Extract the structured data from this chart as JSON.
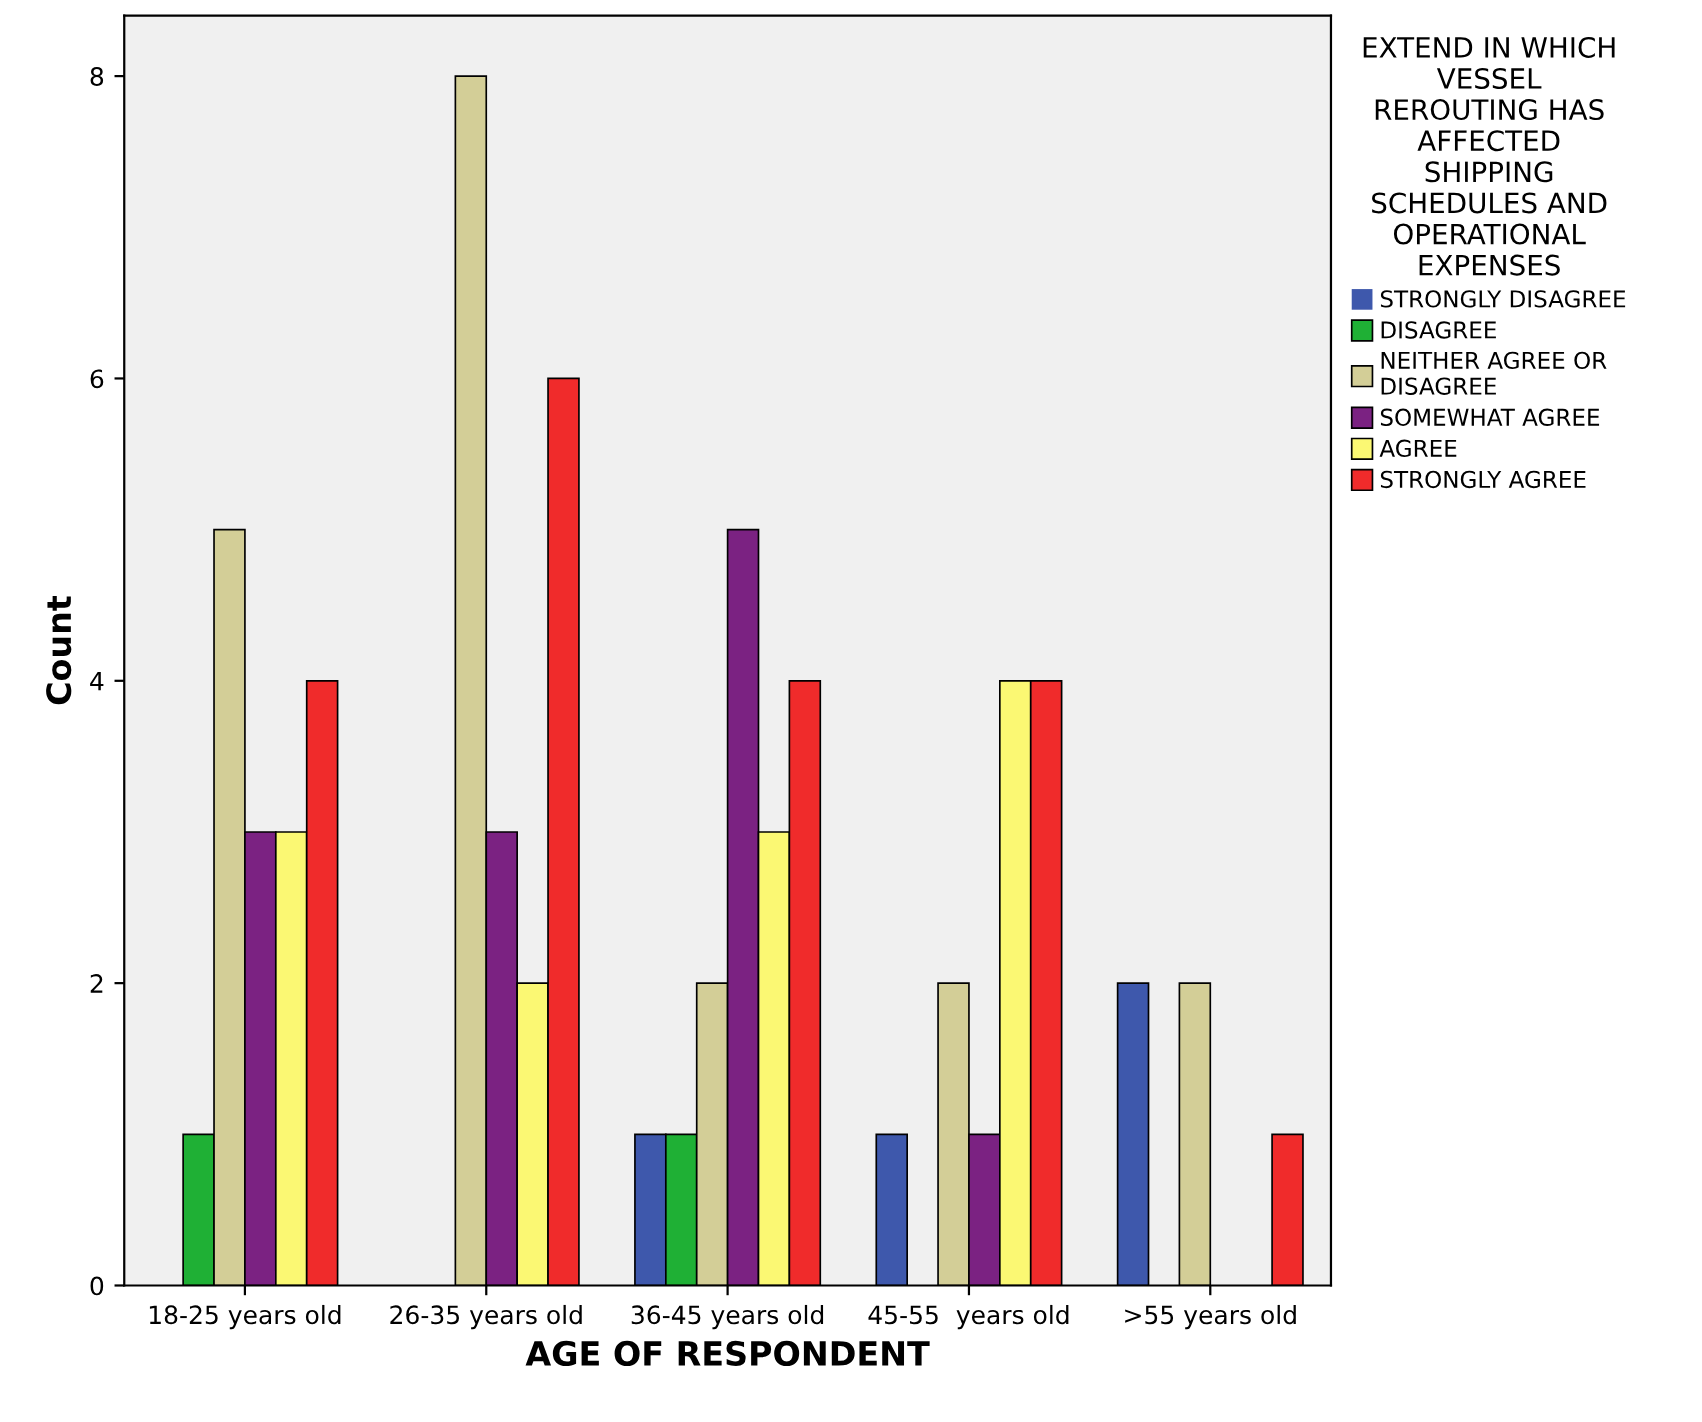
{
  "chart_data": {
    "type": "bar",
    "xlabel": "AGE OF RESPONDENT",
    "ylabel": "Count",
    "legend_title": "EXTEND IN WHICH\nVESSEL\nREROUTING HAS\nAFFECTED\nSHIPPING\nSCHEDULES AND\nOPERATIONAL\nEXPENSES",
    "categories": [
      "18-25 years old",
      "26-35 years old",
      "36-45 years old",
      "45-55  years old",
      ">55 years old"
    ],
    "series": [
      {
        "name": "STRONGLY DISAGREE",
        "color": "#3e58ac",
        "values": [
          0,
          0,
          1,
          1,
          2
        ]
      },
      {
        "name": "DISAGREE",
        "color": "#1fb035",
        "values": [
          1,
          0,
          1,
          0,
          0
        ]
      },
      {
        "name": "NEITHER AGREE OR\nDISAGREE",
        "color": "#d3ce97",
        "values": [
          5,
          8,
          2,
          2,
          2
        ]
      },
      {
        "name": "SOMEWHAT AGREE",
        "color": "#7b2282",
        "values": [
          3,
          3,
          5,
          1,
          0
        ]
      },
      {
        "name": "AGREE",
        "color": "#fbf873",
        "values": [
          3,
          2,
          3,
          4,
          0
        ]
      },
      {
        "name": "STRONGLY AGREE",
        "color": "#f02b2b",
        "values": [
          4,
          6,
          4,
          4,
          1
        ]
      }
    ],
    "ylim": [
      0,
      8.4
    ],
    "yticks": [
      0,
      2,
      4,
      6,
      8
    ],
    "grid": false,
    "legend": "right"
  }
}
